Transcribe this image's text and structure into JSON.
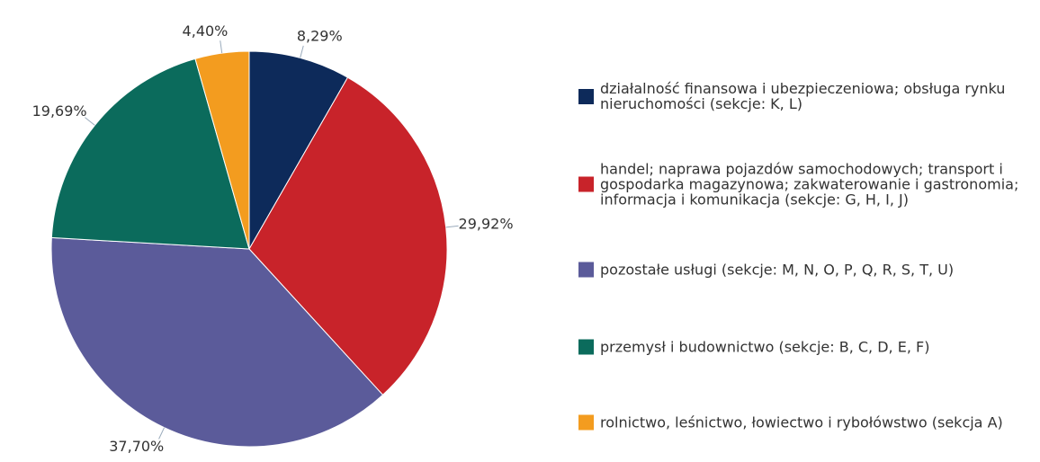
{
  "chart_data": {
    "type": "pie",
    "series": [
      {
        "name": "działalność finansowa i ubezpieczeniowa; obsługa rynku nieruchomości (sekcje: K, L)",
        "color": "#0d2a5a"
      },
      {
        "name": "handel; naprawa pojazdów samochodowych; transport i gospodarka magazynowa; zakwaterowanie i gastronomia; informacja i komunikacja (sekcje: G, H, I, J)",
        "color": "#c8232a"
      },
      {
        "name": "pozostałe usługi (sekcje: M, N, O, P, Q, R, S, T, U)",
        "color": "#5b5b9a"
      },
      {
        "name": "przemysł i budownictwo (sekcje: B, C, D, E, F)",
        "color": "#0b6b5c"
      },
      {
        "name": "rolnictwo, leśnictwo, łowiectwo i rybołówstwo (sekcja A)",
        "color": "#f39c1f"
      }
    ],
    "values": [
      8.29,
      29.92,
      37.7,
      19.69,
      4.4
    ],
    "value_labels": [
      "8,29%",
      "29,92%",
      "37,70%",
      "19,69%",
      "4,40%"
    ]
  }
}
